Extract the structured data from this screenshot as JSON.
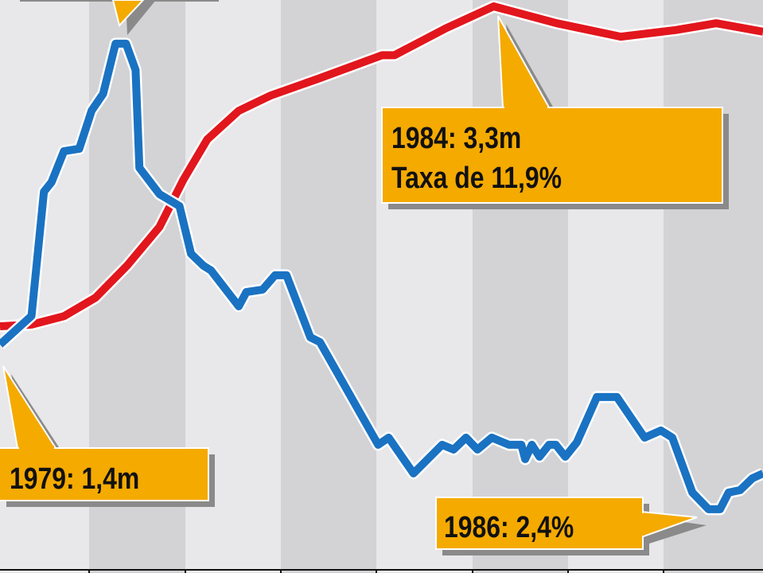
{
  "chart_data": {
    "type": "line",
    "title": "",
    "xlabel": "",
    "ylabel": "",
    "xlim": [
      1979,
      1987
    ],
    "grid": "alternating vertical bands",
    "colors": {
      "band_light": "#e8e8ea",
      "band_dark": "#d3d3d6",
      "callout": "#f5aa00",
      "shadow": "#8a8a8a"
    },
    "series": [
      {
        "key": "red",
        "color": "#e2161d",
        "unit": "m",
        "ylim": [
          -0.065,
          3.338
        ],
        "points": [
          [
            1979.0,
            1.4
          ],
          [
            1979.33,
            1.41
          ],
          [
            1979.67,
            1.46
          ],
          [
            1980.0,
            1.57
          ],
          [
            1980.33,
            1.76
          ],
          [
            1980.67,
            1.99
          ],
          [
            1980.92,
            2.27
          ],
          [
            1981.17,
            2.51
          ],
          [
            1981.5,
            2.68
          ],
          [
            1981.83,
            2.77
          ],
          [
            1982.33,
            2.87
          ],
          [
            1983.0,
            3.01
          ],
          [
            1983.13,
            3.01
          ],
          [
            1983.67,
            3.17
          ],
          [
            1984.17,
            3.3
          ],
          [
            1984.83,
            3.2
          ],
          [
            1985.5,
            3.12
          ],
          [
            1986.08,
            3.16
          ],
          [
            1986.5,
            3.2
          ],
          [
            1986.99,
            3.15
          ]
        ]
      },
      {
        "key": "blue",
        "color": "#1a72c2",
        "unit": "%",
        "ylim": [
          -0.27,
          23.73
        ],
        "points": [
          [
            1979.0,
            9.3
          ],
          [
            1979.33,
            10.5
          ],
          [
            1979.46,
            15.7
          ],
          [
            1979.54,
            16.1
          ],
          [
            1979.67,
            17.4
          ],
          [
            1979.83,
            17.5
          ],
          [
            1979.96,
            19.1
          ],
          [
            1980.08,
            19.8
          ],
          [
            1980.21,
            21.9
          ],
          [
            1980.32,
            21.9
          ],
          [
            1980.42,
            20.8
          ],
          [
            1980.46,
            16.7
          ],
          [
            1980.67,
            15.6
          ],
          [
            1980.88,
            15.1
          ],
          [
            1981.0,
            13.1
          ],
          [
            1981.13,
            12.6
          ],
          [
            1981.21,
            12.4
          ],
          [
            1981.5,
            10.9
          ],
          [
            1981.58,
            11.5
          ],
          [
            1981.75,
            11.6
          ],
          [
            1981.88,
            12.2
          ],
          [
            1982.0,
            12.2
          ],
          [
            1982.25,
            9.6
          ],
          [
            1982.35,
            9.4
          ],
          [
            1982.96,
            5.1
          ],
          [
            1983.07,
            5.4
          ],
          [
            1983.33,
            3.9
          ],
          [
            1983.63,
            5.1
          ],
          [
            1983.75,
            4.9
          ],
          [
            1983.88,
            5.4
          ],
          [
            1984.0,
            4.9
          ],
          [
            1984.15,
            5.4
          ],
          [
            1984.33,
            5.1
          ],
          [
            1984.46,
            5.1
          ],
          [
            1984.5,
            4.5
          ],
          [
            1984.57,
            5.1
          ],
          [
            1984.65,
            4.6
          ],
          [
            1984.75,
            5.1
          ],
          [
            1984.82,
            5.1
          ],
          [
            1984.92,
            4.6
          ],
          [
            1985.04,
            5.2
          ],
          [
            1985.25,
            7.1
          ],
          [
            1985.46,
            7.1
          ],
          [
            1985.75,
            5.4
          ],
          [
            1985.92,
            5.7
          ],
          [
            1986.04,
            5.4
          ],
          [
            1986.25,
            3.1
          ],
          [
            1986.42,
            2.4
          ],
          [
            1986.54,
            2.4
          ],
          [
            1986.63,
            3.1
          ],
          [
            1986.75,
            3.2
          ],
          [
            1986.88,
            3.7
          ],
          [
            1986.99,
            3.9
          ]
        ]
      }
    ],
    "annotations": {
      "a1979": "1979: 1,4m",
      "a1984_line1": "1984: 3,3m",
      "a1984_line2": "Taxa de 11,9%",
      "a1986": "1986: 2,4%"
    }
  }
}
